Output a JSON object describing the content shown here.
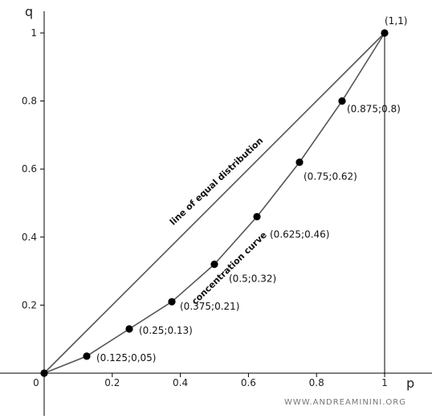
{
  "chart_data": {
    "type": "line",
    "title": "",
    "xlabel": "p",
    "ylabel": "q",
    "xlim": [
      0,
      1
    ],
    "ylim": [
      0,
      1
    ],
    "grid": false,
    "x_ticks": [
      {
        "value": 0,
        "label": "0"
      },
      {
        "value": 0.2,
        "label": "0.2"
      },
      {
        "value": 0.4,
        "label": "0.4"
      },
      {
        "value": 0.6,
        "label": "0.6"
      },
      {
        "value": 0.8,
        "label": "0.8"
      },
      {
        "value": 1,
        "label": "1"
      }
    ],
    "y_ticks": [
      {
        "value": 0.2,
        "label": "0.2"
      },
      {
        "value": 0.4,
        "label": "0.4"
      },
      {
        "value": 0.6,
        "label": "0.6"
      },
      {
        "value": 0.8,
        "label": "0.8"
      },
      {
        "value": 1,
        "label": "1"
      }
    ],
    "series": [
      {
        "name": "line of equal distribution",
        "x": [
          0,
          1
        ],
        "y": [
          0,
          1
        ]
      },
      {
        "name": "concentration curve",
        "x": [
          0,
          0.125,
          0.25,
          0.375,
          0.5,
          0.625,
          0.75,
          0.875,
          1
        ],
        "y": [
          0,
          0.05,
          0.13,
          0.21,
          0.32,
          0.46,
          0.62,
          0.8,
          1
        ]
      }
    ],
    "point_labels": [
      {
        "x": 0.125,
        "y": 0.05,
        "text": "(0.125;0,05)"
      },
      {
        "x": 0.25,
        "y": 0.13,
        "text": "(0.25;0.13)"
      },
      {
        "x": 0.375,
        "y": 0.21,
        "text": "(0.375;0.21)"
      },
      {
        "x": 0.5,
        "y": 0.32,
        "text": "(0.5;0.32)"
      },
      {
        "x": 0.625,
        "y": 0.46,
        "text": "(0.625;0.46)"
      },
      {
        "x": 0.75,
        "y": 0.62,
        "text": "(0.75;0.62)"
      },
      {
        "x": 0.875,
        "y": 0.8,
        "text": "(0.875;0.8)"
      },
      {
        "x": 1,
        "y": 1,
        "text": "(1,1)"
      }
    ],
    "annotations": [
      {
        "text": "line of equal distribution",
        "target": "equality-line"
      },
      {
        "text": "concentration curve",
        "target": "concentration-curve"
      }
    ],
    "colors": {
      "line": "#555555",
      "marker": "#000000",
      "axis": "#000000"
    }
  },
  "watermark": "WWW.ANDREAMININI.ORG"
}
